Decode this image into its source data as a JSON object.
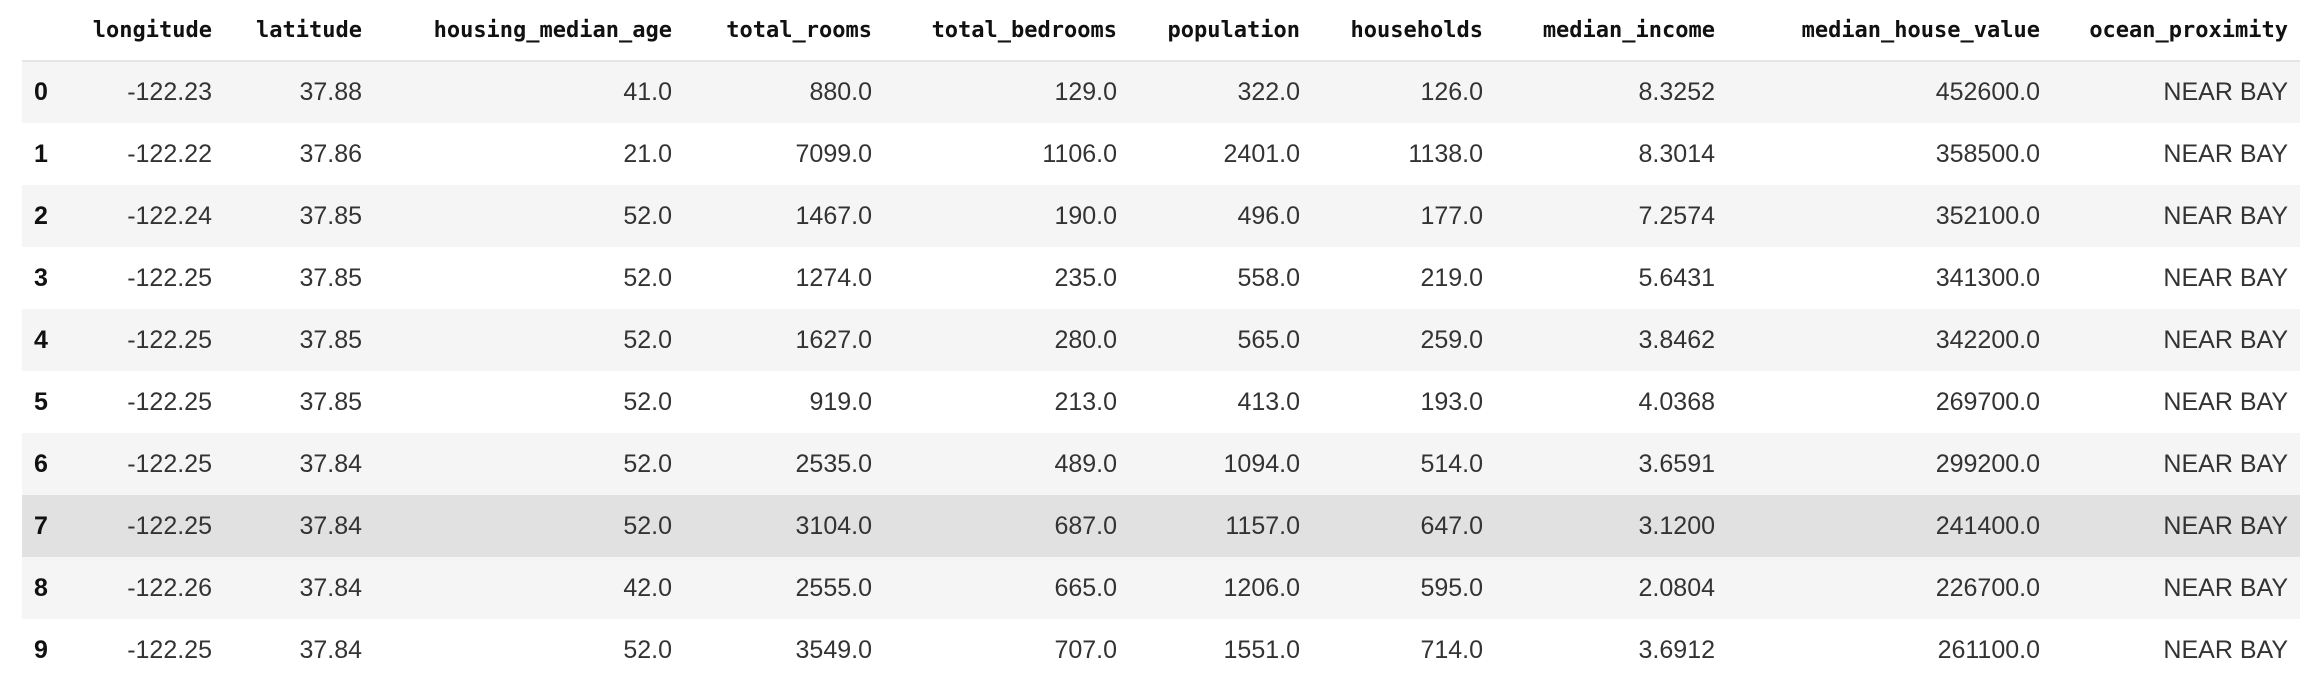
{
  "columns": [
    "",
    "longitude",
    "latitude",
    "housing_median_age",
    "total_rooms",
    "total_bedrooms",
    "population",
    "households",
    "median_income",
    "median_house_value",
    "ocean_proximity"
  ],
  "rows": [
    {
      "index": "0",
      "cells": [
        "-122.23",
        "37.88",
        "41.0",
        "880.0",
        "129.0",
        "322.0",
        "126.0",
        "8.3252",
        "452600.0",
        "NEAR BAY"
      ]
    },
    {
      "index": "1",
      "cells": [
        "-122.22",
        "37.86",
        "21.0",
        "7099.0",
        "1106.0",
        "2401.0",
        "1138.0",
        "8.3014",
        "358500.0",
        "NEAR BAY"
      ]
    },
    {
      "index": "2",
      "cells": [
        "-122.24",
        "37.85",
        "52.0",
        "1467.0",
        "190.0",
        "496.0",
        "177.0",
        "7.2574",
        "352100.0",
        "NEAR BAY"
      ]
    },
    {
      "index": "3",
      "cells": [
        "-122.25",
        "37.85",
        "52.0",
        "1274.0",
        "235.0",
        "558.0",
        "219.0",
        "5.6431",
        "341300.0",
        "NEAR BAY"
      ]
    },
    {
      "index": "4",
      "cells": [
        "-122.25",
        "37.85",
        "52.0",
        "1627.0",
        "280.0",
        "565.0",
        "259.0",
        "3.8462",
        "342200.0",
        "NEAR BAY"
      ]
    },
    {
      "index": "5",
      "cells": [
        "-122.25",
        "37.85",
        "52.0",
        "919.0",
        "213.0",
        "413.0",
        "193.0",
        "4.0368",
        "269700.0",
        "NEAR BAY"
      ]
    },
    {
      "index": "6",
      "cells": [
        "-122.25",
        "37.84",
        "52.0",
        "2535.0",
        "489.0",
        "1094.0",
        "514.0",
        "3.6591",
        "299200.0",
        "NEAR BAY"
      ]
    },
    {
      "index": "7",
      "cells": [
        "-122.25",
        "37.84",
        "52.0",
        "3104.0",
        "687.0",
        "1157.0",
        "647.0",
        "3.1200",
        "241400.0",
        "NEAR BAY"
      ]
    },
    {
      "index": "8",
      "cells": [
        "-122.26",
        "37.84",
        "42.0",
        "2555.0",
        "665.0",
        "1206.0",
        "595.0",
        "2.0804",
        "226700.0",
        "NEAR BAY"
      ]
    },
    {
      "index": "9",
      "cells": [
        "-122.25",
        "37.84",
        "52.0",
        "3549.0",
        "707.0",
        "1551.0",
        "714.0",
        "3.6912",
        "261100.0",
        "NEAR BAY"
      ]
    }
  ],
  "style": {
    "odd_row_bg": "#f5f5f5",
    "even_row_bg": "#ffffff",
    "hover_row_bg": "#e1e1e1",
    "hovered_row_index": "7"
  }
}
